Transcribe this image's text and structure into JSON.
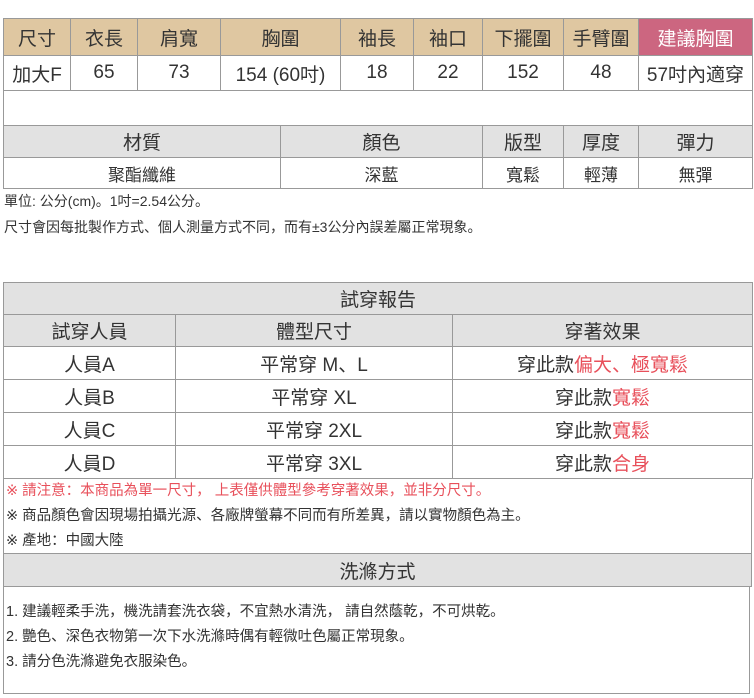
{
  "size_table": {
    "headers": [
      "尺寸",
      "衣長",
      "肩寬",
      "胸圍",
      "袖長",
      "袖口",
      "下擺圍",
      "手臂圍",
      "建議胸圍"
    ],
    "row": [
      "加大F",
      "65",
      "73",
      "154 (60吋)",
      "18",
      "22",
      "152",
      "48",
      "57吋內適穿"
    ]
  },
  "material_table": {
    "headers": [
      "材質",
      "顏色",
      "版型",
      "厚度",
      "彈力"
    ],
    "row": [
      "聚酯纖維",
      "深藍",
      "寬鬆",
      "輕薄",
      "無彈"
    ]
  },
  "notes": [
    "單位: 公分(cm)。1吋=2.54公分。",
    "尺寸會因每批製作方式、個人測量方式不同，而有±3公分內誤差屬正常現象。"
  ],
  "try_on": {
    "title": "試穿報告",
    "headers": [
      "試穿人員",
      "體型尺寸",
      "穿著效果"
    ],
    "rows": [
      {
        "person": "人員A",
        "size": "平常穿 M、L",
        "effect_prefix": "穿此款",
        "effect": "偏大、極寬鬆"
      },
      {
        "person": "人員B",
        "size": "平常穿 XL",
        "effect_prefix": "穿此款",
        "effect": "寬鬆"
      },
      {
        "person": "人員C",
        "size": "平常穿 2XL",
        "effect_prefix": "穿此款",
        "effect": "寬鬆"
      },
      {
        "person": "人員D",
        "size": "平常穿 3XL",
        "effect_prefix": "穿此款",
        "effect": "合身"
      }
    ]
  },
  "remarks": {
    "warning": "※ 請注意：本商品為單一尺寸， 上表僅供體型參考穿著效果，並非分尺寸。",
    "color": "※ 商品顏色會因現場拍攝光源、各廠牌螢幕不同而有所差異，請以實物顏色為主。",
    "origin": "※ 產地：中國大陸"
  },
  "washing": {
    "title": "洗滌方式",
    "items": [
      "1. 建議輕柔手洗，機洗請套洗衣袋，不宜熱水清洗， 請自然蔭乾，不可烘乾。",
      "2. 艷色、深色衣物第一次下水洗滌時偶有輕微吐色屬正常現象。",
      "3. 請分色洗滌避免衣服染色。"
    ]
  },
  "colors": {
    "header_tan": "#dfc7a1",
    "highlight_pink": "#cc6680",
    "gray": "#e2e2e2",
    "accent_red": "#e8505b"
  }
}
